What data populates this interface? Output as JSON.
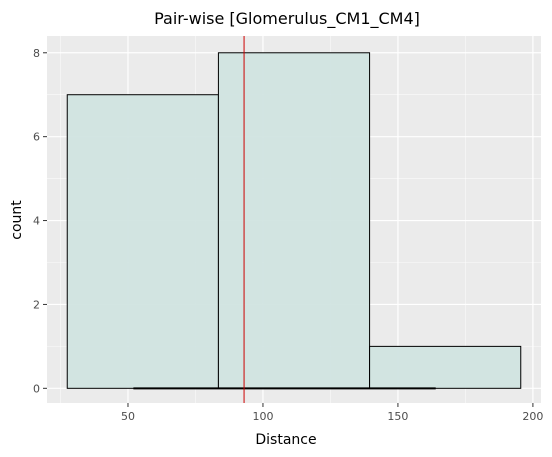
{
  "chart_data": {
    "type": "bar",
    "title": "Pair-wise [Glomerulus_CM1_CM4]",
    "xlabel": "Distance",
    "ylabel": "count",
    "xlim": [
      20,
      203
    ],
    "ylim": [
      -0.35,
      8.4
    ],
    "x_ticks": [
      50,
      100,
      150,
      200
    ],
    "y_ticks": [
      0,
      2,
      4,
      6,
      8
    ],
    "bins": [
      {
        "x0": 27.5,
        "x1": 83.5,
        "count": 7
      },
      {
        "x0": 83.5,
        "x1": 139.5,
        "count": 8
      },
      {
        "x0": 139.5,
        "x1": 195.5,
        "count": 1
      }
    ],
    "rug_range": [
      52,
      164
    ],
    "vline_x": 93,
    "grid": true,
    "colors": {
      "panel_bg": "#ebebeb",
      "grid_major": "#ffffff",
      "bar_fill": "#cfe3df",
      "bar_stroke": "#000000",
      "vline": "#cc0000",
      "tick": "#333333"
    }
  }
}
